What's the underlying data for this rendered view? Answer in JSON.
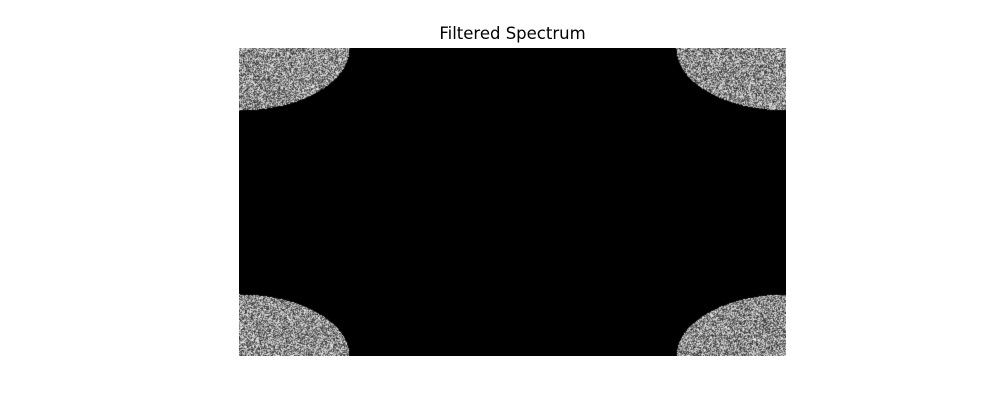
{
  "figure": {
    "title": "Filtered Spectrum"
  },
  "image": {
    "description_type": "grayscale-spectrum",
    "background_color": "#000000",
    "noise_min_gray": 40,
    "noise_max_gray": 245,
    "visible_regions": [
      "top-left",
      "top-right",
      "bottom-left",
      "bottom-right"
    ]
  }
}
